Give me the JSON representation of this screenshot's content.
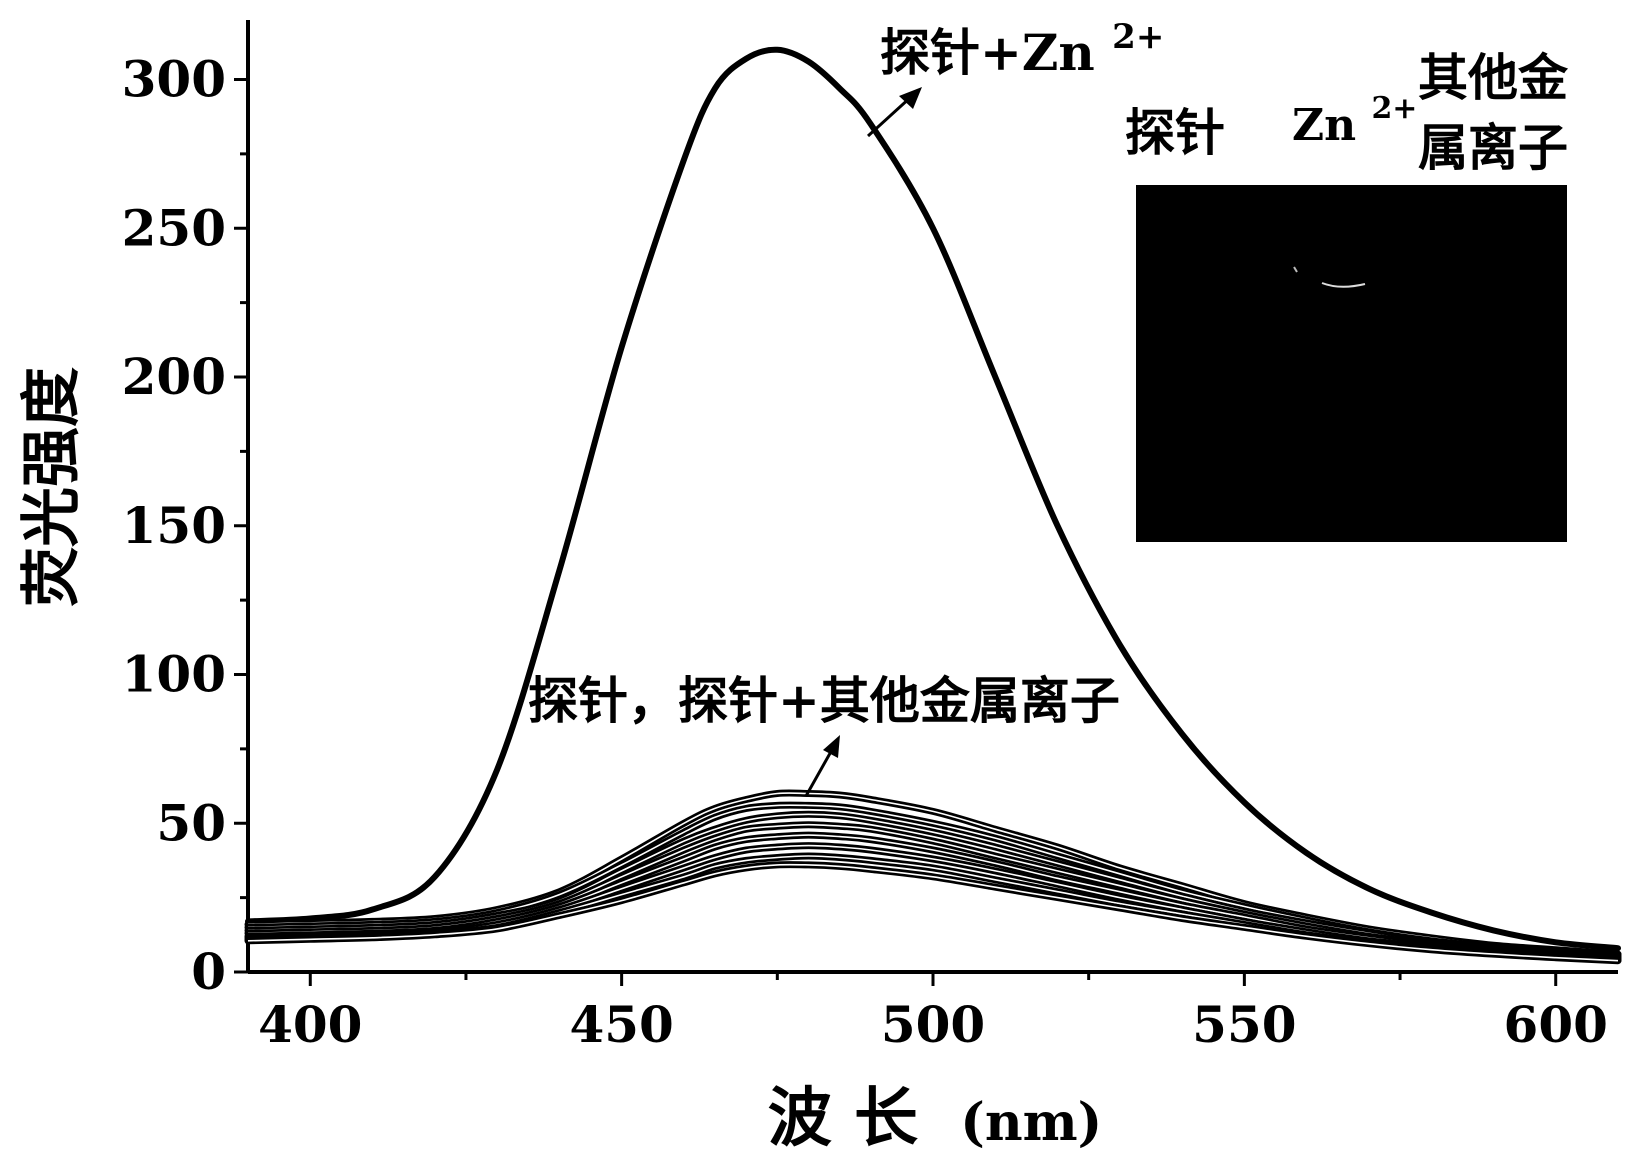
{
  "chart_data": {
    "type": "line",
    "xlabel_cn": "波 长",
    "xlabel_unit": "(nm)",
    "ylabel": "荧光强度",
    "xlim": [
      390,
      610
    ],
    "ylim": [
      0,
      320
    ],
    "xticks": [
      400,
      450,
      500,
      550,
      600
    ],
    "yticks": [
      0,
      50,
      100,
      150,
      200,
      250,
      300
    ],
    "grid": false,
    "legend": "none",
    "x": [
      390,
      400,
      410,
      420,
      430,
      440,
      450,
      460,
      465,
      470,
      475,
      480,
      485,
      490,
      500,
      510,
      520,
      530,
      540,
      550,
      560,
      570,
      580,
      590,
      600,
      610
    ],
    "series": [
      {
        "values": [
          17,
          18,
          21,
          32,
          68,
          135,
          210,
          273,
          297,
          307,
          310,
          306,
          297,
          285,
          250,
          200,
          150,
          110,
          80,
          57,
          40,
          28,
          20,
          14,
          10,
          8
        ]
      },
      {
        "values": [
          16,
          16.5,
          17,
          18,
          21,
          27,
          38,
          50,
          55,
          58,
          60,
          60,
          59.5,
          58,
          54,
          48,
          42,
          35,
          29,
          23,
          18.5,
          14.5,
          11.5,
          9,
          7.5,
          6
        ]
      },
      {
        "values": [
          15,
          15.5,
          16,
          17,
          20,
          26,
          36,
          47,
          52,
          55,
          56,
          56,
          55.5,
          54,
          50,
          45,
          39,
          33,
          27,
          22,
          17.5,
          13.5,
          10.5,
          8.5,
          7,
          5.5
        ]
      },
      {
        "values": [
          14,
          14.5,
          15,
          16,
          19,
          24,
          34,
          44,
          48,
          51,
          52.5,
          53,
          52.5,
          51,
          47,
          42,
          36.5,
          31,
          25.5,
          20.5,
          16.5,
          13,
          10,
          8,
          6.5,
          5
        ]
      },
      {
        "values": [
          13,
          13.5,
          14,
          15,
          18,
          23,
          32,
          41,
          45,
          48,
          49,
          49.5,
          49,
          48,
          44,
          39,
          34,
          29,
          24,
          19.5,
          15.5,
          12,
          9.5,
          7.5,
          6,
          4.8
        ]
      },
      {
        "values": [
          12,
          12.5,
          13,
          14,
          17,
          22,
          30,
          38,
          42,
          44.5,
          45.5,
          46,
          45.5,
          44.5,
          41,
          36.5,
          31.5,
          27,
          22.5,
          18.5,
          14.5,
          11.5,
          9,
          7,
          5.5,
          4.5
        ]
      },
      {
        "values": [
          11.5,
          12,
          12.5,
          13.5,
          16,
          21,
          28,
          35,
          38.5,
          41,
          42,
          42.5,
          42,
          41,
          38,
          34,
          29.5,
          25,
          21,
          17,
          13.5,
          10.5,
          8.5,
          6.5,
          5.2,
          4.2
        ]
      },
      {
        "values": [
          11,
          11.5,
          12,
          13,
          15,
          20,
          26,
          32,
          35.5,
          37.5,
          38.5,
          39,
          38.5,
          37.5,
          35,
          31,
          27,
          23,
          19.5,
          16,
          12.5,
          10,
          8,
          6.2,
          5,
          4
        ]
      },
      {
        "values": [
          10.5,
          11,
          11.5,
          12.5,
          14.5,
          19,
          24,
          30,
          33,
          35,
          36,
          36,
          35.5,
          34.5,
          32,
          28.5,
          25,
          21.5,
          18,
          15,
          12,
          9.5,
          7.5,
          6,
          4.8,
          3.8
        ]
      }
    ],
    "annotations": {
      "top_label_prefix": "探针+Zn",
      "top_label_sup": "2+",
      "bottom_label": "探针，探针+其他金属离子"
    },
    "inset": {
      "label_probe": "探针",
      "label_zn_base": "Zn",
      "label_zn_sup": "2+",
      "label_other_line1": "其他金",
      "label_other_line2": "属离子",
      "background": "#000000"
    }
  }
}
